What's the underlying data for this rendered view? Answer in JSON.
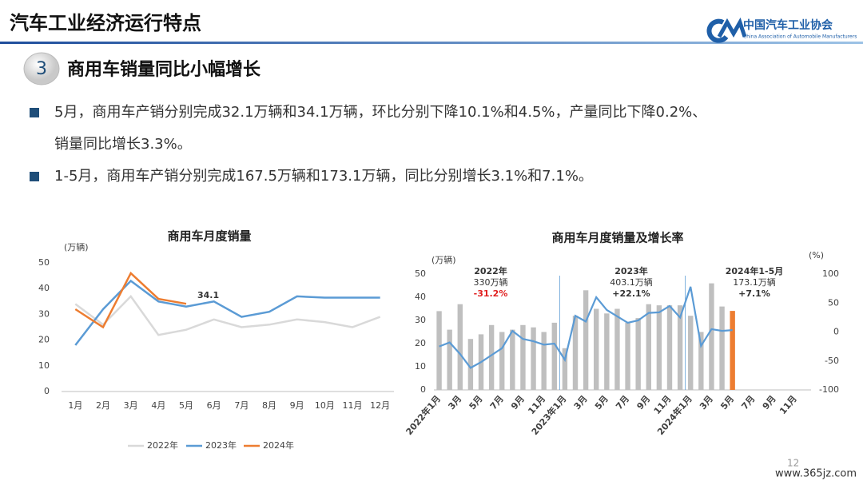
{
  "header": {
    "title": "汽车工业经济运行特点",
    "org": "中国汽车工业协会",
    "org_en": "China Association of Automobile Manufacturers"
  },
  "section": {
    "number": "3",
    "heading": "商用车销量同比小幅增长"
  },
  "bullets": [
    {
      "lines": [
        "5月，商用车产销分别完成32.1万辆和34.1万辆，环比分别下降10.1%和4.5%，产量同比下降0.2%、",
        "销量同比增长3.3%。"
      ]
    },
    {
      "lines": [
        "1-5月，商用车产销分别完成167.5万辆和173.1万辆，同比分别增长3.1%和7.1%。"
      ]
    }
  ],
  "chart_data": [
    {
      "type": "line",
      "title": "商用车月度销量",
      "y_label": "(万辆)",
      "categories": [
        "1月",
        "2月",
        "3月",
        "4月",
        "5月",
        "6月",
        "7月",
        "8月",
        "9月",
        "10月",
        "11月",
        "12月"
      ],
      "ylim": [
        0,
        50
      ],
      "yticks": [
        0,
        10,
        20,
        30,
        40,
        50
      ],
      "series": [
        {
          "name": "2022年",
          "color": "#d9d9d9",
          "values": [
            34,
            26,
            37,
            22,
            24,
            28,
            25,
            26,
            28,
            27,
            25,
            29
          ]
        },
        {
          "name": "2023年",
          "color": "#5b9bd5",
          "values": [
            18,
            32,
            43,
            35,
            33,
            35,
            29,
            31,
            37,
            36.5,
            36.5,
            36.5
          ]
        },
        {
          "name": "2024年",
          "color": "#ed7d31",
          "values": [
            32,
            25,
            46,
            36,
            34.1,
            null,
            null,
            null,
            null,
            null,
            null,
            null
          ],
          "label_index": 4
        }
      ],
      "legend": "bottom"
    },
    {
      "type": "bar_line",
      "title": "商用车月度销量及增长率",
      "y_label": "(万辆)",
      "y2_label": "(%)",
      "categories": [
        "2022年1月",
        null,
        "3月",
        null,
        "5月",
        null,
        "7月",
        null,
        "9月",
        null,
        "11月",
        null,
        "2023年1月",
        null,
        "3月",
        null,
        "5月",
        null,
        "7月",
        null,
        "9月",
        null,
        "11月",
        null,
        "2024年1月",
        null,
        "3月",
        null,
        "5月",
        null,
        "7月",
        null,
        "9月",
        null,
        "11月",
        null
      ],
      "ylim": [
        0,
        50
      ],
      "yticks": [
        0,
        10,
        20,
        30,
        40,
        50
      ],
      "y2lim": [
        -100,
        100
      ],
      "y2ticks": [
        -100,
        -50,
        0,
        50,
        100
      ],
      "series": [
        {
          "type": "bar",
          "color": "#bfbfbf",
          "highlight": {
            "index": 28,
            "color": "#ed7d31"
          },
          "values": [
            34,
            26,
            37,
            22,
            24,
            28,
            25,
            26,
            28,
            27,
            25,
            29,
            18,
            32,
            43,
            35,
            33,
            35,
            29,
            31,
            37,
            36.5,
            36.5,
            36.5,
            32,
            25,
            46,
            36,
            34.1,
            null,
            null,
            null,
            null,
            null,
            null,
            null
          ]
        },
        {
          "type": "line",
          "axis": "y2",
          "color": "#5b9bd5",
          "values": [
            -25,
            -18,
            -38,
            -62,
            -52,
            -40,
            -28,
            2,
            -12,
            -16,
            -22,
            -20,
            -48,
            28,
            18,
            60,
            38,
            27,
            16,
            20,
            33,
            34,
            45,
            25,
            78,
            -24,
            5,
            2,
            3.3,
            null,
            null,
            null,
            null,
            null,
            null,
            null
          ]
        }
      ],
      "annotations": [
        {
          "year": "2022年",
          "total": "330万辆",
          "growth": "-31.2%",
          "growth_color": "#e02020"
        },
        {
          "year": "2023年",
          "total": "403.1万辆",
          "growth": "+22.1%",
          "growth_color": "#333333"
        },
        {
          "year": "2024年1-5月",
          "total": "173.1万辆",
          "growth": "+7.1%",
          "growth_color": "#333333"
        }
      ]
    }
  ],
  "footer": {
    "page": "12",
    "watermark": "www.365jz.com"
  }
}
